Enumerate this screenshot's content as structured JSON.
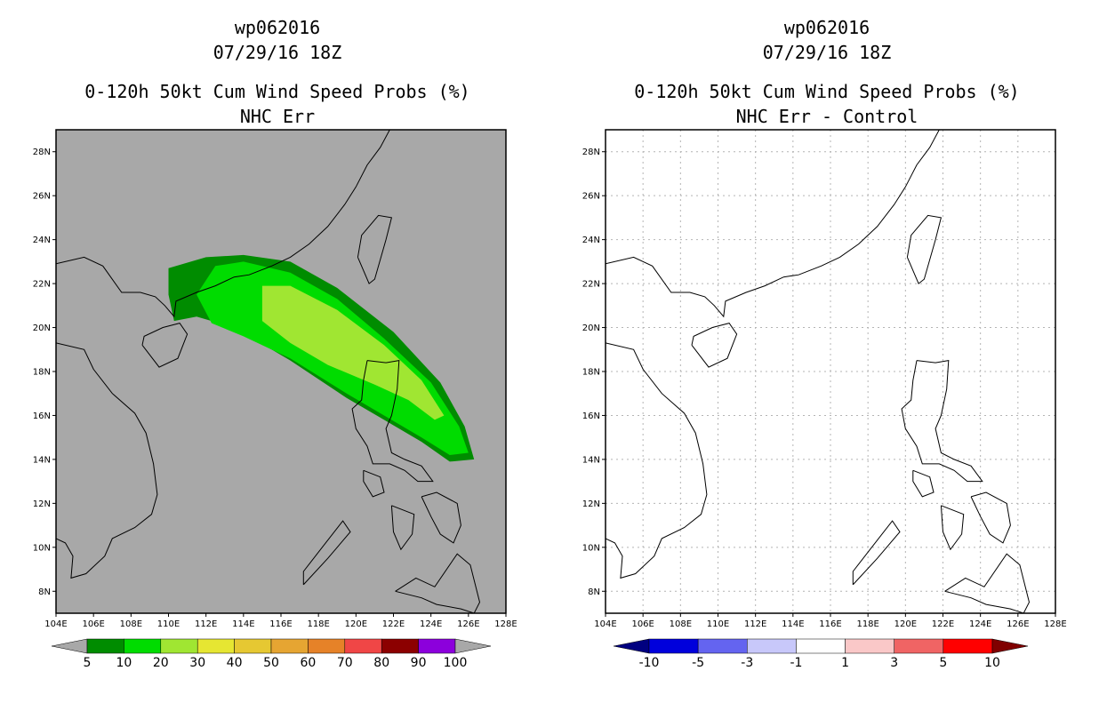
{
  "chart_data": [
    {
      "type": "heatmap",
      "storm_id": "wp062016",
      "datetime": "07/29/16 18Z",
      "title": "0-120h 50kt Cum Wind Speed Probs (%)",
      "subtitle": "NHC Err",
      "xlabel": "",
      "ylabel": "",
      "xlim": [
        104,
        128
      ],
      "ylim": [
        7,
        29
      ],
      "grid": false,
      "x_ticks": [
        "104E",
        "106E",
        "108E",
        "110E",
        "112E",
        "114E",
        "116E",
        "118E",
        "120E",
        "122E",
        "124E",
        "126E",
        "128E"
      ],
      "y_ticks": [
        "8N",
        "10N",
        "12N",
        "14N",
        "16N",
        "18N",
        "20N",
        "22N",
        "24N",
        "26N",
        "28N"
      ],
      "colorbar": {
        "labels": [
          "5",
          "10",
          "20",
          "30",
          "40",
          "50",
          "60",
          "70",
          "80",
          "90",
          "100"
        ],
        "colors": [
          "#008c00",
          "#00dc00",
          "#a0e632",
          "#e6e632",
          "#e6c832",
          "#e6a532",
          "#e68228",
          "#f04646",
          "#8c0000",
          "#8c00dc"
        ]
      },
      "probability_swaths": [
        {
          "min_pct": 5,
          "max_pct": 10,
          "color": "#008c00",
          "polygon_lon_lat": [
            [
              110.0,
              22.7
            ],
            [
              112.0,
              23.2
            ],
            [
              114.0,
              23.3
            ],
            [
              116.5,
              23.0
            ],
            [
              119.0,
              21.8
            ],
            [
              122.0,
              19.8
            ],
            [
              124.5,
              17.5
            ],
            [
              125.8,
              15.5
            ],
            [
              126.3,
              14.0
            ],
            [
              125.0,
              13.9
            ],
            [
              123.5,
              14.8
            ],
            [
              121.5,
              15.8
            ],
            [
              119.5,
              16.8
            ],
            [
              116.5,
              18.5
            ],
            [
              113.5,
              20.0
            ],
            [
              111.5,
              20.5
            ],
            [
              110.3,
              20.3
            ],
            [
              110.0,
              21.5
            ]
          ]
        },
        {
          "min_pct": 10,
          "max_pct": 20,
          "color": "#00dc00",
          "polygon_lon_lat": [
            [
              112.5,
              22.8
            ],
            [
              114.0,
              23.0
            ],
            [
              116.5,
              22.5
            ],
            [
              119.0,
              21.3
            ],
            [
              121.5,
              19.5
            ],
            [
              124.0,
              17.5
            ],
            [
              125.5,
              15.5
            ],
            [
              126.0,
              14.3
            ],
            [
              125.0,
              14.2
            ],
            [
              123.5,
              15.0
            ],
            [
              121.5,
              16.0
            ],
            [
              119.5,
              17.0
            ],
            [
              116.5,
              18.6
            ],
            [
              114.0,
              19.6
            ],
            [
              112.3,
              20.2
            ],
            [
              111.5,
              21.5
            ]
          ]
        },
        {
          "min_pct": 20,
          "max_pct": 30,
          "color": "#a0e632",
          "polygon_lon_lat": [
            [
              115.0,
              21.9
            ],
            [
              116.5,
              21.9
            ],
            [
              119.0,
              20.8
            ],
            [
              121.5,
              19.2
            ],
            [
              123.5,
              17.6
            ],
            [
              124.7,
              16.0
            ],
            [
              124.2,
              15.8
            ],
            [
              122.8,
              16.7
            ],
            [
              121.0,
              17.4
            ],
            [
              118.5,
              18.3
            ],
            [
              116.5,
              19.3
            ],
            [
              115.0,
              20.3
            ]
          ]
        }
      ]
    },
    {
      "type": "heatmap",
      "storm_id": "wp062016",
      "datetime": "07/29/16 18Z",
      "title": "0-120h 50kt Cum Wind Speed Probs (%)",
      "subtitle": "NHC Err - Control",
      "xlabel": "",
      "ylabel": "",
      "xlim": [
        104,
        128
      ],
      "ylim": [
        7,
        29
      ],
      "grid": true,
      "x_ticks": [
        "104E",
        "106E",
        "108E",
        "110E",
        "112E",
        "114E",
        "116E",
        "118E",
        "120E",
        "122E",
        "124E",
        "126E",
        "128E"
      ],
      "y_ticks": [
        "8N",
        "10N",
        "12N",
        "14N",
        "16N",
        "18N",
        "20N",
        "22N",
        "24N",
        "26N",
        "28N"
      ],
      "colorbar": {
        "labels": [
          "-10",
          "-5",
          "-3",
          "-1",
          "1",
          "3",
          "5",
          "10"
        ],
        "colors": [
          "#0000dc",
          "#6464f0",
          "#c8c8fa",
          "#ffffff",
          "#fac8c8",
          "#f06464",
          "#ff0000"
        ],
        "end_colors": [
          "#000080",
          "#800000"
        ]
      },
      "probability_swaths": []
    }
  ]
}
